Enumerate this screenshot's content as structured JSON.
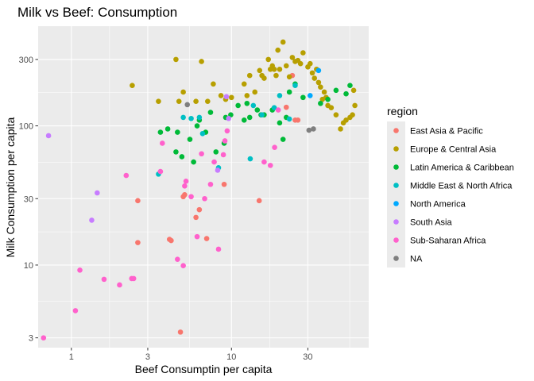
{
  "chart_data": {
    "type": "scatter",
    "title": "Milk vs Beef: Consumption",
    "xlabel": "Beef Consumptin per capita",
    "ylabel": "Milk Consumption per capita",
    "x_scale": "log10",
    "y_scale": "log10",
    "xlim": [
      0.62,
      72
    ],
    "ylim": [
      2.55,
      520
    ],
    "x_ticks": [
      1,
      3,
      10,
      30
    ],
    "x_tick_labels": [
      "1",
      "3",
      "10",
      "30"
    ],
    "y_ticks": [
      3,
      10,
      30,
      100,
      300
    ],
    "y_tick_labels": [
      "3",
      "10",
      "30",
      "100",
      "300"
    ],
    "grid": true,
    "legend_title": "region",
    "legend_position": "right",
    "series": [
      {
        "name": "East Asia & Pacific",
        "color": "#F8766D",
        "points": [
          [
            24,
            230
          ],
          [
            25,
            110
          ],
          [
            2.6,
            29
          ],
          [
            2.6,
            14.5
          ],
          [
            4.2,
            15
          ],
          [
            4.1,
            15.3
          ],
          [
            5.0,
            31
          ],
          [
            5.1,
            32
          ],
          [
            6.0,
            22
          ],
          [
            6.3,
            25
          ],
          [
            7.0,
            15.5
          ],
          [
            9,
            38
          ],
          [
            14.9,
            29
          ],
          [
            22,
            136
          ],
          [
            26,
            110
          ],
          [
            4.8,
            3.3
          ]
        ]
      },
      {
        "name": "Europe & Central Asia",
        "color": "#B79F00",
        "points": [
          [
            2.4,
            195
          ],
          [
            3.5,
            150
          ],
          [
            4.5,
            300
          ],
          [
            4.7,
            150
          ],
          [
            5,
            175
          ],
          [
            6,
            150
          ],
          [
            6.5,
            290
          ],
          [
            7.1,
            150
          ],
          [
            7.7,
            200
          ],
          [
            8.6,
            165
          ],
          [
            9.2,
            155
          ],
          [
            10,
            160
          ],
          [
            12,
            200
          ],
          [
            12.5,
            165
          ],
          [
            13,
            230
          ],
          [
            14,
            175
          ],
          [
            15,
            250
          ],
          [
            15.5,
            230
          ],
          [
            16,
            220
          ],
          [
            17,
            300
          ],
          [
            17.5,
            255
          ],
          [
            18,
            270
          ],
          [
            18.5,
            255
          ],
          [
            19,
            230
          ],
          [
            19.5,
            350
          ],
          [
            20,
            255
          ],
          [
            21,
            400
          ],
          [
            22,
            270
          ],
          [
            23,
            225
          ],
          [
            24,
            310
          ],
          [
            25,
            290
          ],
          [
            26,
            295
          ],
          [
            27,
            280
          ],
          [
            28,
            335
          ],
          [
            30,
            265
          ],
          [
            31,
            280
          ],
          [
            32,
            240
          ],
          [
            33,
            220
          ],
          [
            34,
            255
          ],
          [
            35,
            205
          ],
          [
            36,
            190
          ],
          [
            37,
            155
          ],
          [
            38,
            175
          ],
          [
            39,
            160
          ],
          [
            40,
            140
          ],
          [
            42,
            135
          ],
          [
            45,
            120
          ],
          [
            48,
            95
          ],
          [
            50,
            105
          ],
          [
            52,
            110
          ],
          [
            55,
            115
          ],
          [
            57,
            120
          ],
          [
            58,
            180
          ],
          [
            59,
            140
          ]
        ]
      },
      {
        "name": "Latin America & Caribbean",
        "color": "#00BA38",
        "points": [
          [
            3.6,
            90
          ],
          [
            4.0,
            95
          ],
          [
            4.5,
            65
          ],
          [
            4.6,
            90
          ],
          [
            4.9,
            60
          ],
          [
            5.5,
            80
          ],
          [
            5.8,
            55
          ],
          [
            6.1,
            100
          ],
          [
            6.3,
            110
          ],
          [
            6.9,
            90
          ],
          [
            7.4,
            125
          ],
          [
            8,
            65
          ],
          [
            9,
            75
          ],
          [
            9.2,
            115
          ],
          [
            9.9,
            120
          ],
          [
            11,
            140
          ],
          [
            12,
            110
          ],
          [
            12.5,
            145
          ],
          [
            13,
            115
          ],
          [
            14.5,
            130
          ],
          [
            15.3,
            120
          ],
          [
            16,
            120
          ],
          [
            18,
            130
          ],
          [
            20,
            105
          ],
          [
            21,
            80
          ],
          [
            22,
            115
          ],
          [
            23,
            175
          ],
          [
            25,
            200
          ],
          [
            28,
            160
          ],
          [
            36,
            145
          ],
          [
            40,
            155
          ],
          [
            45,
            180
          ],
          [
            52,
            170
          ],
          [
            55,
            195
          ]
        ]
      },
      {
        "name": "Middle East & North Africa",
        "color": "#00BFC4",
        "points": [
          [
            3.5,
            45
          ],
          [
            5.0,
            115
          ],
          [
            5.6,
            113
          ],
          [
            6.3,
            115
          ],
          [
            6.6,
            88
          ],
          [
            8.3,
            50
          ],
          [
            13.1,
            58
          ],
          [
            13.7,
            140
          ],
          [
            15.5,
            120
          ],
          [
            18.5,
            135
          ],
          [
            20,
            165
          ],
          [
            23,
            112
          ],
          [
            25,
            195
          ]
        ]
      },
      {
        "name": "North America",
        "color": "#00A9FF",
        "points": [
          [
            31,
            165
          ],
          [
            35,
            250
          ]
        ]
      },
      {
        "name": "South Asia",
        "color": "#C77CFF",
        "points": [
          [
            0.72,
            85
          ],
          [
            1.34,
            21
          ],
          [
            1.45,
            33
          ],
          [
            8.2,
            48
          ],
          [
            9.6,
            113
          ],
          [
            9.3,
            162
          ]
        ]
      },
      {
        "name": "Sub-Saharan Africa",
        "color": "#FF61CC",
        "points": [
          [
            0.67,
            3.0
          ],
          [
            1.06,
            4.7
          ],
          [
            1.13,
            9.2
          ],
          [
            1.6,
            7.9
          ],
          [
            2.0,
            7.2
          ],
          [
            2.2,
            44
          ],
          [
            2.38,
            8.0
          ],
          [
            2.45,
            8.0
          ],
          [
            3.6,
            47
          ],
          [
            3.7,
            75
          ],
          [
            4.6,
            11
          ],
          [
            5.0,
            9.9
          ],
          [
            5.1,
            37
          ],
          [
            5.2,
            40
          ],
          [
            5.6,
            31
          ],
          [
            6.1,
            16
          ],
          [
            6.5,
            63
          ],
          [
            6.8,
            30
          ],
          [
            7.4,
            38
          ],
          [
            7.8,
            55
          ],
          [
            8.3,
            13
          ],
          [
            8.9,
            62
          ],
          [
            9.1,
            78
          ],
          [
            9.4,
            92
          ],
          [
            16.0,
            55
          ],
          [
            17.5,
            52
          ],
          [
            18.6,
            70
          ],
          [
            19.6,
            130
          ]
        ]
      },
      {
        "name": "NA",
        "color": "#7F7F7F",
        "points": [
          [
            5.3,
            142
          ],
          [
            30.5,
            93
          ],
          [
            32.5,
            95
          ]
        ]
      }
    ]
  }
}
